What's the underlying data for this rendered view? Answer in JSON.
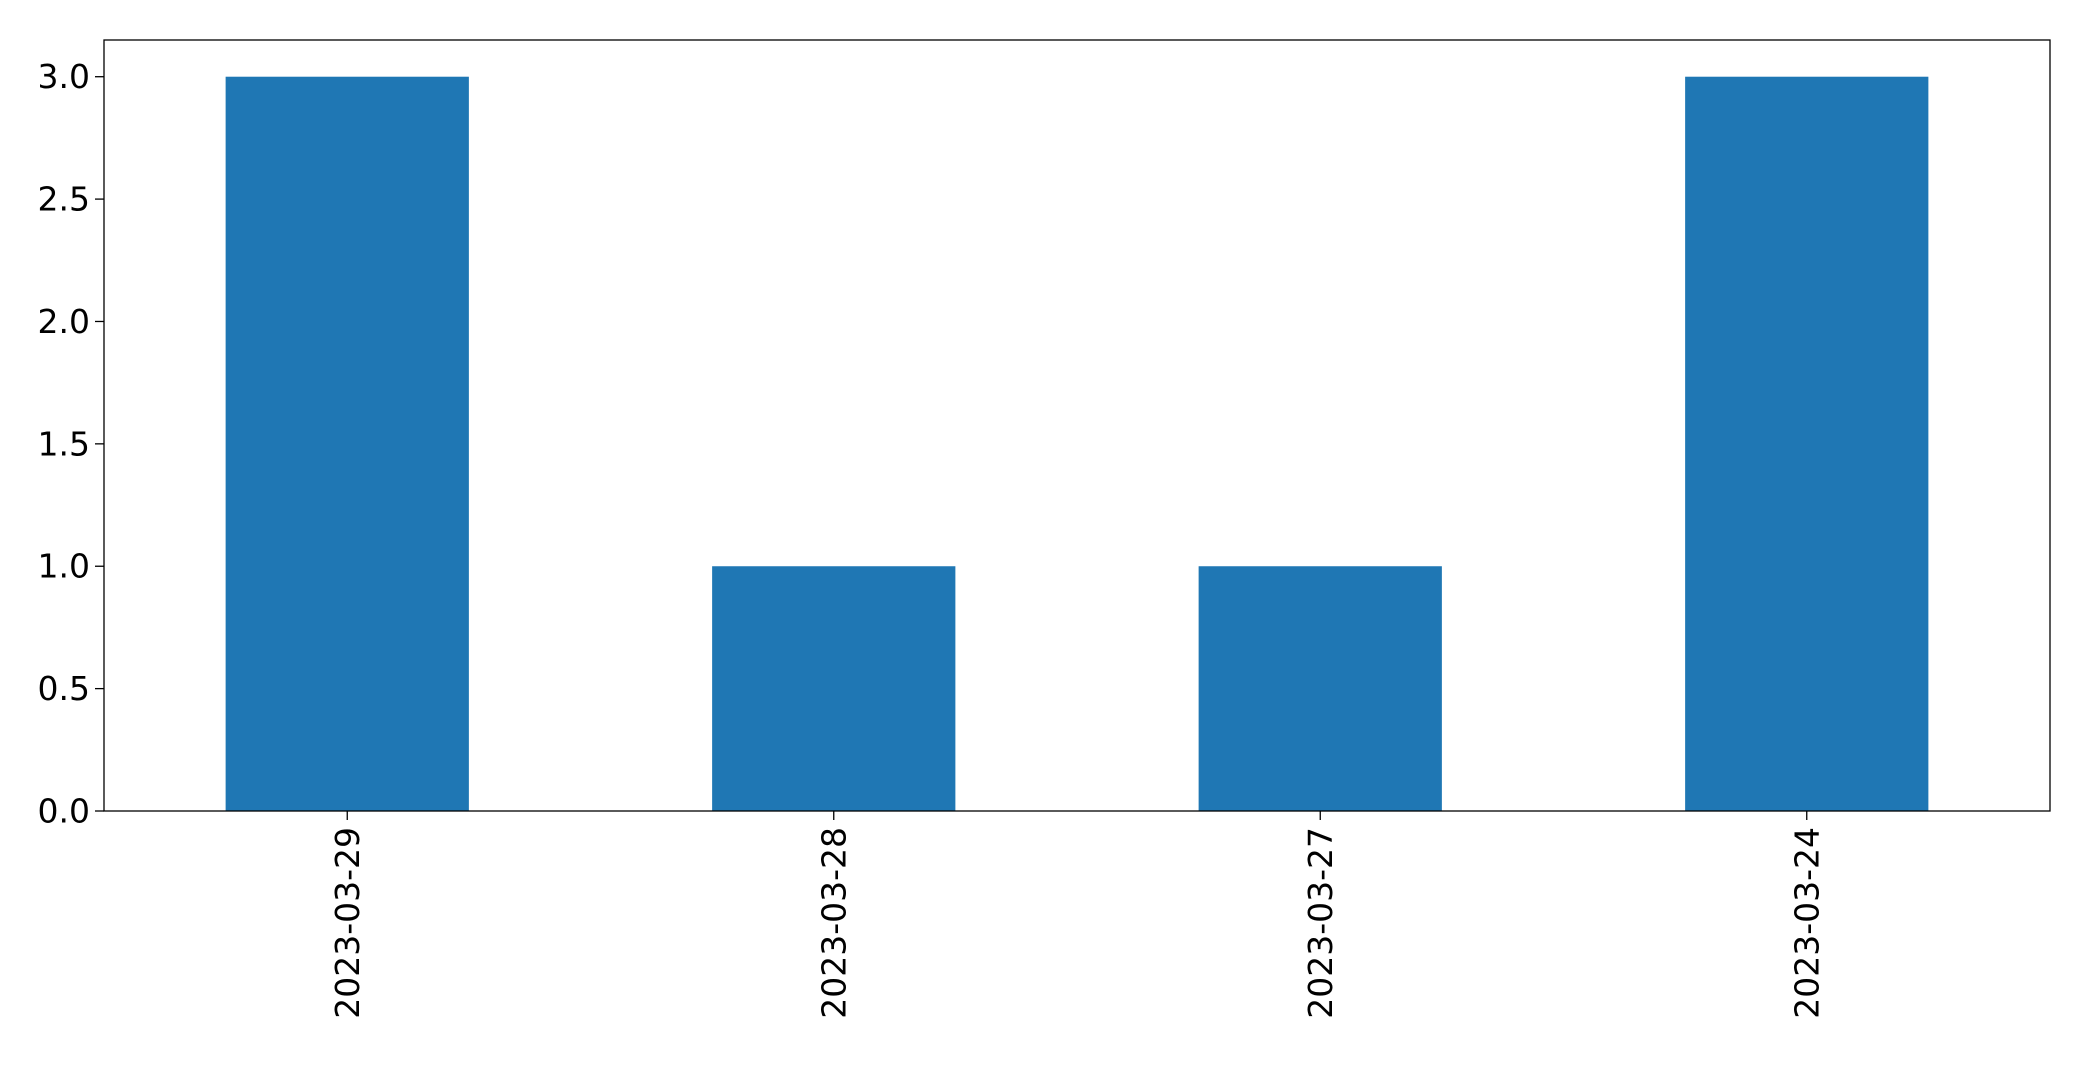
{
  "chart_data": {
    "type": "bar",
    "categories": [
      "2023-03-29",
      "2023-03-28",
      "2023-03-27",
      "2023-03-24"
    ],
    "values": [
      3,
      1,
      1,
      3
    ],
    "title": "",
    "xlabel": "",
    "ylabel": "",
    "ylim": [
      0,
      3.15
    ],
    "yticks": [
      "0.0",
      "0.5",
      "1.0",
      "1.5",
      "2.0",
      "2.5",
      "3.0"
    ],
    "bar_color": "#1f77b4",
    "grid": false,
    "legend": false
  }
}
